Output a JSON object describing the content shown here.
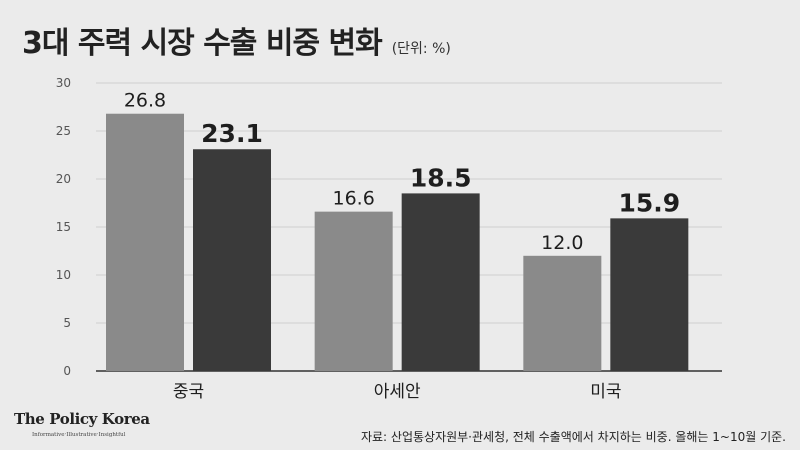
{
  "header": {
    "title": "3대 주력 시장 수출 비중 변화",
    "unit": "(단위: %)"
  },
  "chart_data": {
    "type": "bar",
    "categories": [
      "중국",
      "아세안",
      "미국"
    ],
    "series": [
      {
        "values": [
          26.8,
          16.6,
          12.0
        ],
        "labels": [
          "26.8",
          "16.6",
          "12.0"
        ],
        "color": "#8a8a8a"
      },
      {
        "values": [
          23.1,
          18.5,
          15.9
        ],
        "labels": [
          "23.1",
          "18.5",
          "15.9"
        ],
        "color": "#3a3a3a"
      }
    ],
    "ylim": [
      0,
      30
    ],
    "yticks": [
      0,
      5,
      10,
      15,
      20,
      25,
      30
    ],
    "grid": true,
    "legend": "none"
  },
  "footer": {
    "brand": "The Policy Korea",
    "brand_tagline": "Informative·Illustrative·Insightful",
    "source": "자료: 산업통상자원부·관세청, 전체 수출액에서 차지하는 비중. 올해는 1~10월 기준."
  }
}
